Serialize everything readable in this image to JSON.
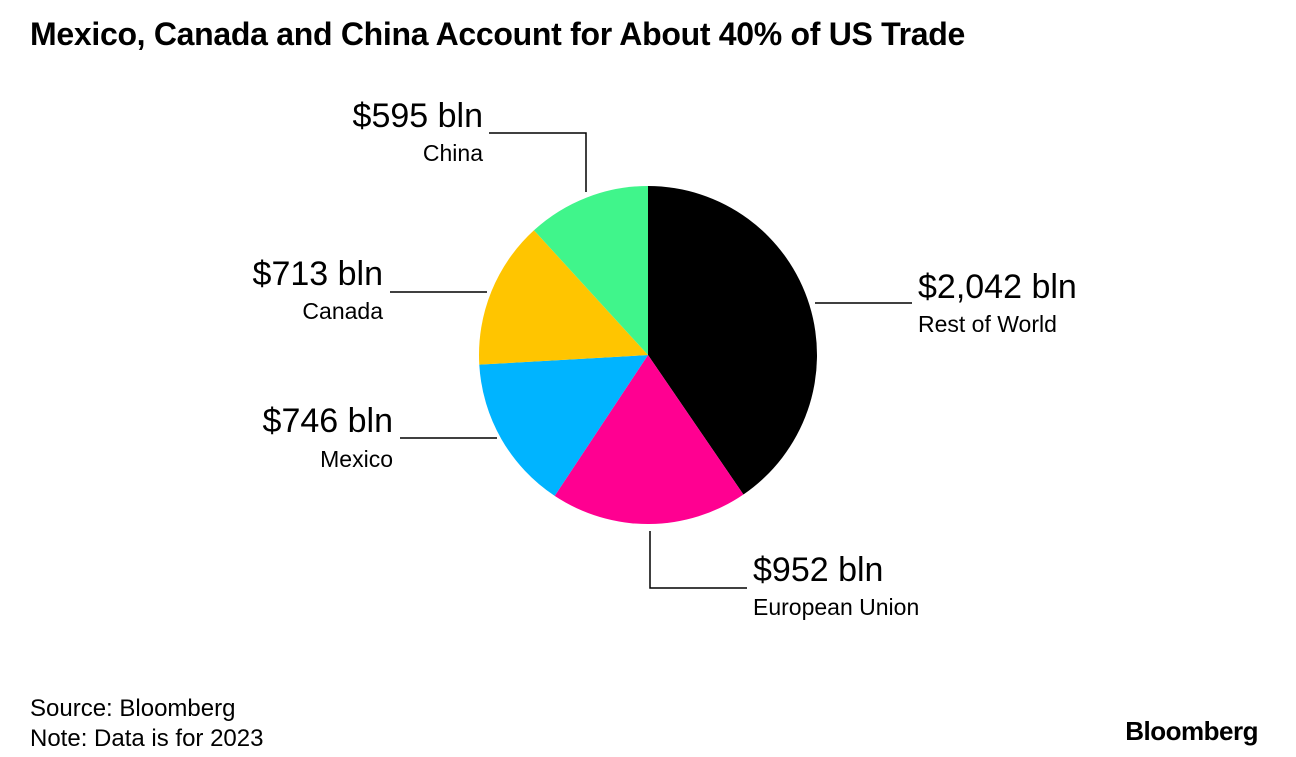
{
  "title": "Mexico, Canada and China Account for About 40% of US Trade",
  "source": "Source: Bloomberg",
  "note": "Note: Data is for 2023",
  "brand": "Bloomberg",
  "chart_data": {
    "type": "pie",
    "title": "Mexico, Canada and China Account for About 40% of US Trade",
    "unit": "bln",
    "slices": [
      {
        "name": "Rest of World",
        "value": 2042,
        "label": "$2,042 bln",
        "color": "#000000"
      },
      {
        "name": "European Union",
        "value": 952,
        "label": "$952 bln",
        "color": "#ff0091"
      },
      {
        "name": "Mexico",
        "value": 746,
        "label": "$746 bln",
        "color": "#00b4ff"
      },
      {
        "name": "Canada",
        "value": 713,
        "label": "$713 bln",
        "color": "#ffc500"
      },
      {
        "name": "China",
        "value": 595,
        "label": "$595 bln",
        "color": "#40f58b"
      }
    ]
  }
}
